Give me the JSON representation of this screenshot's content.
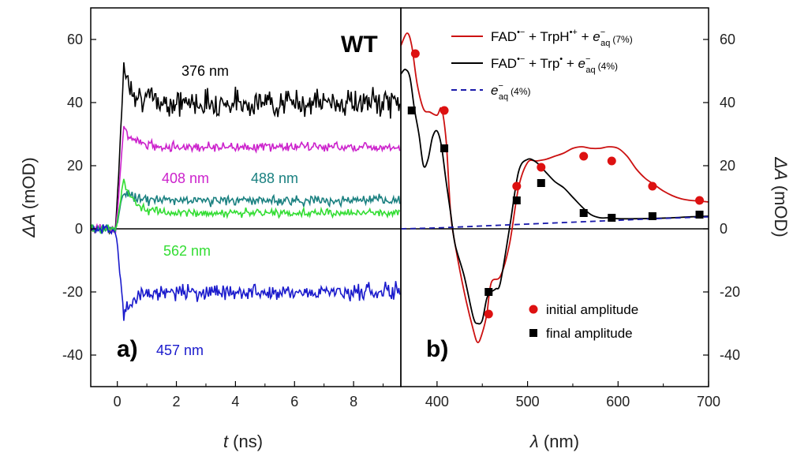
{
  "chart_data": [
    {
      "panel": "a)",
      "type": "line",
      "annotation": "WT",
      "xlabel_var": "t",
      "xlabel_unit": "(ns)",
      "ylabel_var": "ΔA",
      "ylabel_unit": "(mOD)",
      "xlim": [
        -0.9,
        9.6
      ],
      "ylim": [
        -50,
        70
      ],
      "xticks": [
        0,
        2,
        4,
        6,
        8
      ],
      "yticks": [
        -40,
        -20,
        0,
        20,
        40,
        60
      ],
      "series": [
        {
          "name": "376 nm",
          "color": "#000000",
          "plateau": 40,
          "peak": 51,
          "noise": 3.5
        },
        {
          "name": "408 nm",
          "color": "#cc22cc",
          "plateau": 26,
          "peak": 32,
          "noise": 1.2
        },
        {
          "name": "488 nm",
          "color": "#1a8080",
          "plateau": 9,
          "peak": 12,
          "noise": 1.3
        },
        {
          "name": "562 nm",
          "color": "#33dd33",
          "plateau": 5,
          "peak": 15.5,
          "noise": 1.0
        },
        {
          "name": "457 nm",
          "color": "#1a1acc",
          "plateau": -20,
          "peak": -27,
          "noise": 2.2
        }
      ]
    },
    {
      "panel": "b)",
      "type": "line",
      "xlabel_var": "λ",
      "xlabel_unit": "(nm)",
      "ylabel_var": "ΔA",
      "ylabel_unit": "(mOD)",
      "xlim": [
        360,
        700
      ],
      "ylim": [
        -50,
        70
      ],
      "xticks": [
        400,
        500,
        600,
        700
      ],
      "yticks": [
        -40,
        -20,
        0,
        20,
        40,
        60
      ],
      "legend": [
        {
          "color": "#cc1111",
          "style": "solid",
          "parts": [
            "FAD",
            "•−",
            " + TrpH",
            "•+",
            " + ",
            "e",
            "−",
            "aq",
            "(7%)"
          ]
        },
        {
          "color": "#000000",
          "style": "solid",
          "parts": [
            "FAD",
            "•−",
            " +  Trp",
            "•",
            "    + ",
            "e",
            "−",
            "aq",
            "(4%)"
          ]
        },
        {
          "color": "#1a1aaa",
          "style": "dashed",
          "parts": [
            "",
            "",
            "",
            "",
            "",
            "e",
            "−",
            "aq",
            "(4%)"
          ]
        }
      ],
      "series": [
        {
          "name": "FAD•− + TrpH•+ + e−aq (7%)",
          "color": "#cc1111",
          "x": [
            360,
            367,
            372,
            378,
            385,
            392,
            400,
            405,
            410,
            415,
            420,
            430,
            440,
            445,
            450,
            455,
            460,
            470,
            480,
            490,
            500,
            510,
            520,
            530,
            540,
            550,
            560,
            570,
            580,
            590,
            600,
            610,
            620,
            630,
            640,
            650,
            660,
            670,
            680,
            690,
            700
          ],
          "y": [
            58,
            62,
            58,
            46,
            38,
            37,
            36,
            38,
            28,
            5,
            -5,
            -20,
            -32,
            -36,
            -33,
            -27,
            -17,
            -15,
            -5,
            13,
            21,
            21.5,
            22,
            23,
            24,
            25.5,
            26,
            25.5,
            25.5,
            26,
            25.5,
            23,
            19,
            16,
            14,
            12,
            10.5,
            9.5,
            9,
            8.8,
            8.5
          ]
        },
        {
          "name": "FAD•− + Trp• + e−aq (4%)",
          "color": "#000000",
          "x": [
            360,
            365,
            370,
            375,
            380,
            385,
            390,
            395,
            400,
            405,
            410,
            415,
            420,
            430,
            440,
            445,
            450,
            455,
            460,
            465,
            470,
            480,
            490,
            500,
            510,
            520,
            530,
            540,
            550,
            560,
            570,
            580,
            590,
            600,
            620,
            640,
            660,
            680,
            700
          ],
          "y": [
            49,
            50.5,
            48,
            38,
            30,
            20,
            22,
            29,
            31,
            26,
            15,
            5,
            -5,
            -15,
            -28,
            -30,
            -29,
            -22,
            -20,
            -19,
            -17,
            0,
            18,
            22,
            21,
            18,
            15,
            13,
            10,
            7,
            4.5,
            3.5,
            3.5,
            3.2,
            3.2,
            3.3,
            3.5,
            3.8,
            4
          ]
        },
        {
          "name": "e−aq (4%)",
          "color": "#1a1aaa",
          "dashed": true,
          "x": [
            360,
            400,
            450,
            500,
            550,
            600,
            650,
            700
          ],
          "y": [
            0,
            0.3,
            0.9,
            1.5,
            2.1,
            2.7,
            3.3,
            3.8
          ]
        }
      ],
      "markers": [
        {
          "name": "initial amplitude",
          "shape": "circle",
          "color": "#dd1111",
          "x": [
            376,
            408,
            457,
            488,
            515,
            562,
            593,
            638,
            690
          ],
          "y": [
            55.5,
            37.5,
            -27,
            13.5,
            19.5,
            23,
            21.5,
            13.5,
            9
          ]
        },
        {
          "name": "final amplitude",
          "shape": "square",
          "color": "#000000",
          "x": [
            372,
            408,
            457,
            488,
            515,
            562,
            593,
            638,
            690
          ],
          "y": [
            37.5,
            25.5,
            -20,
            9,
            14.5,
            5,
            3.5,
            4,
            4.5
          ]
        }
      ]
    }
  ]
}
